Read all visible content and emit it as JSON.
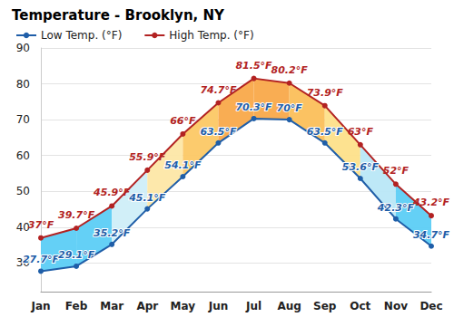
{
  "chart_data": {
    "type": "line",
    "title": "Temperature - Brooklyn, NY",
    "categories": [
      "Jan",
      "Feb",
      "Mar",
      "Apr",
      "May",
      "Jun",
      "Jul",
      "Aug",
      "Sep",
      "Oct",
      "Nov",
      "Dec"
    ],
    "series": [
      {
        "name": "Low Temp. (°F)",
        "color": "#1f5ea8",
        "marker": "circle",
        "values": [
          27.7,
          29.1,
          35.2,
          45.1,
          54.1,
          63.5,
          70.3,
          70,
          63.5,
          53.6,
          42.3,
          34.7
        ],
        "value_labels": [
          "27.7°F",
          "29.1°F",
          "35.2°F",
          "45.1°F",
          "54.1°F",
          "63.5°F",
          "70.3°F",
          "70°F",
          "63.5°F",
          "53.6°F",
          "42.3°F",
          "34.7°F"
        ]
      },
      {
        "name": "High Temp. (°F)",
        "color": "#b22222",
        "marker": "circle",
        "values": [
          37,
          39.7,
          45.9,
          55.9,
          66,
          74.7,
          81.5,
          80.2,
          73.9,
          63,
          52,
          43.2
        ],
        "value_labels": [
          "37°F",
          "39.7°F",
          "45.9°F",
          "55.9°F",
          "66°F",
          "74.7°F",
          "81.5°F",
          "80.2°F",
          "73.9°F",
          "63°F",
          "52°F",
          "43.2°F"
        ]
      }
    ],
    "ylim": [
      22,
      90
    ],
    "yticks": [
      30,
      40,
      50,
      60,
      70,
      80,
      90
    ],
    "grid": true,
    "legend": "top left",
    "data_labels": true
  }
}
